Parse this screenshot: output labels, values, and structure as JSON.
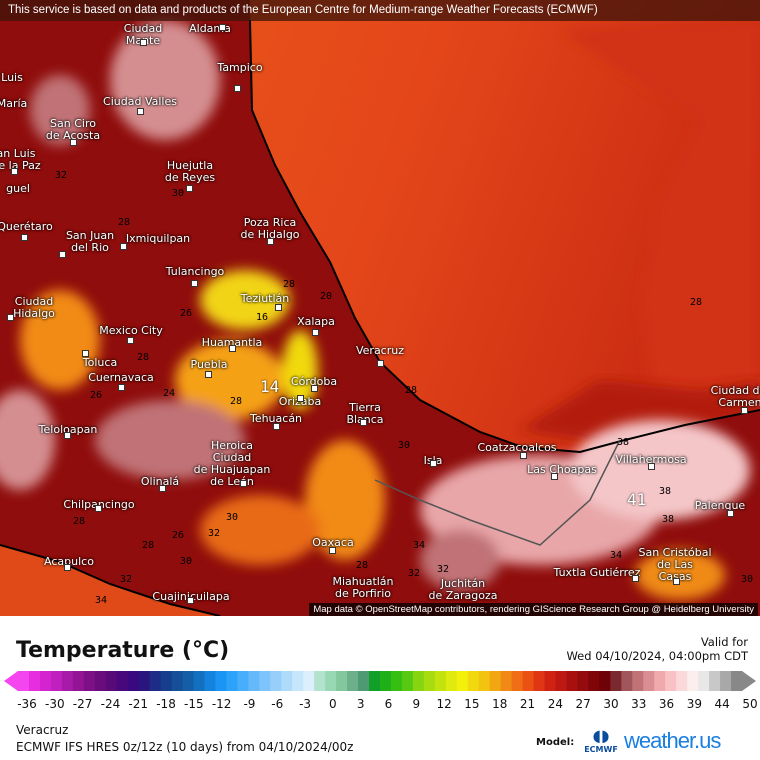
{
  "banner": "This service is based on data and products of the European Centre for Medium-range Weather Forecasts (ECMWF)",
  "attribution": "Map data © OpenStreetMap contributors, rendering GIScience Research Group @ Heidelberg University",
  "cities": [
    {
      "name": "Ciudad\nMante"
    },
    {
      "name": "Aldama"
    },
    {
      "name": "Tampico"
    },
    {
      "name": "Luis"
    },
    {
      "name": "María"
    },
    {
      "name": "Ciudad Valles"
    },
    {
      "name": "San Ciro\nde Acosta"
    },
    {
      "name": "an Luis\nde la Paz"
    },
    {
      "name": "Huejutla\nde Reyes"
    },
    {
      "name": "guel"
    },
    {
      "name": "Querétaro"
    },
    {
      "name": "San Juan\ndel Rio"
    },
    {
      "name": "Ixmiquilpan"
    },
    {
      "name": "Poza Rica\nde Hidalgo"
    },
    {
      "name": "Tulancingo"
    },
    {
      "name": "Ciudad\nHidalgo"
    },
    {
      "name": "Teziutlán"
    },
    {
      "name": "Mexico City"
    },
    {
      "name": "Xalapa"
    },
    {
      "name": "Huamantla"
    },
    {
      "name": "Toluca"
    },
    {
      "name": "Puebla"
    },
    {
      "name": "Veracruz"
    },
    {
      "name": "Cuernavaca"
    },
    {
      "name": "Córdoba"
    },
    {
      "name": "Orizaba"
    },
    {
      "name": "Tierra\nBlanca"
    },
    {
      "name": "Tehuacán"
    },
    {
      "name": "Teloloapan"
    },
    {
      "name": "Heroica\nCiudad\nde Huajuapan\nde León"
    },
    {
      "name": "Isla"
    },
    {
      "name": "Coatzacoalcos"
    },
    {
      "name": "Las Choapas"
    },
    {
      "name": "Villahermosa"
    },
    {
      "name": "Olinalá"
    },
    {
      "name": "Chilpancingo"
    },
    {
      "name": "Palenque"
    },
    {
      "name": "Oaxaca"
    },
    {
      "name": "San Cristóbal\nde Las\nCasas"
    },
    {
      "name": "Acapulco"
    },
    {
      "name": "Tuxtla Gutiérrez"
    },
    {
      "name": "Miahuatlán\nde Porfirio"
    },
    {
      "name": "Juchitán\nde Zaragoza"
    },
    {
      "name": "Cuajinicuilapa"
    },
    {
      "name": "Ciudad del\nCarmen"
    }
  ],
  "isolines": [
    "32",
    "30",
    "28",
    "28",
    "26",
    "20",
    "16",
    "28",
    "24",
    "28",
    "14",
    "26",
    "28",
    "28",
    "30",
    "32",
    "26",
    "28",
    "30",
    "32",
    "28",
    "34",
    "32",
    "38",
    "38",
    "41",
    "38",
    "34",
    "30",
    "28",
    "30",
    "32",
    "34"
  ],
  "legend": {
    "title": "Temperature (°C)",
    "valid_label": "Valid for",
    "valid_time": "Wed 04/10/2024, 04:00pm CDT",
    "ticks": [
      "-36",
      "-30",
      "-27",
      "-24",
      "-21",
      "-18",
      "-15",
      "-12",
      "-9",
      "-6",
      "-3",
      "0",
      "3",
      "6",
      "9",
      "12",
      "15",
      "18",
      "21",
      "24",
      "27",
      "30",
      "33",
      "36",
      "39",
      "44",
      "50"
    ],
    "colors": [
      "#f545f0",
      "#e62ee0",
      "#d424cf",
      "#c020bf",
      "#a81aa8",
      "#931596",
      "#7d1087",
      "#6a0c7c",
      "#570a78",
      "#46087a",
      "#3a0880",
      "#2a157f",
      "#1d2c86",
      "#163d8e",
      "#154f98",
      "#135ea6",
      "#1370c0",
      "#1582dd",
      "#1c94f4",
      "#2da2fb",
      "#48aefb",
      "#63b9fa",
      "#7dc4fa",
      "#97cffa",
      "#afdbfb",
      "#c6e6fc",
      "#dbeffd",
      "#b3e3cc",
      "#99d8b4",
      "#83c79d",
      "#6bb08a",
      "#4e9a72",
      "#10a02a",
      "#1fb018",
      "#36bf12",
      "#58c912",
      "#86d510",
      "#a6dc10",
      "#c3e30f",
      "#dfeb0e",
      "#f3f00c",
      "#f0d90e",
      "#f2c30f",
      "#f2a612",
      "#f18a14",
      "#ef6e16",
      "#eb5015",
      "#e03614",
      "#cf2213",
      "#bd1812",
      "#a81010",
      "#930b0d",
      "#800509",
      "#6e0206",
      "#7a2a2e",
      "#a0565a",
      "#c07276",
      "#d98e92",
      "#f0aaad",
      "#f8c2c4",
      "#fbd8d9",
      "#fdeeee",
      "#e8e8e8",
      "#c8c8c8",
      "#a8a8a8",
      "#888888"
    ]
  },
  "location": "Veracruz",
  "model_run": "ECMWF IFS HRES 0z/12z (10 days) from  04/10/2024/00z",
  "model_label": "Model:",
  "ecmwf_logo": "ECMWF",
  "brand": "weather.us"
}
